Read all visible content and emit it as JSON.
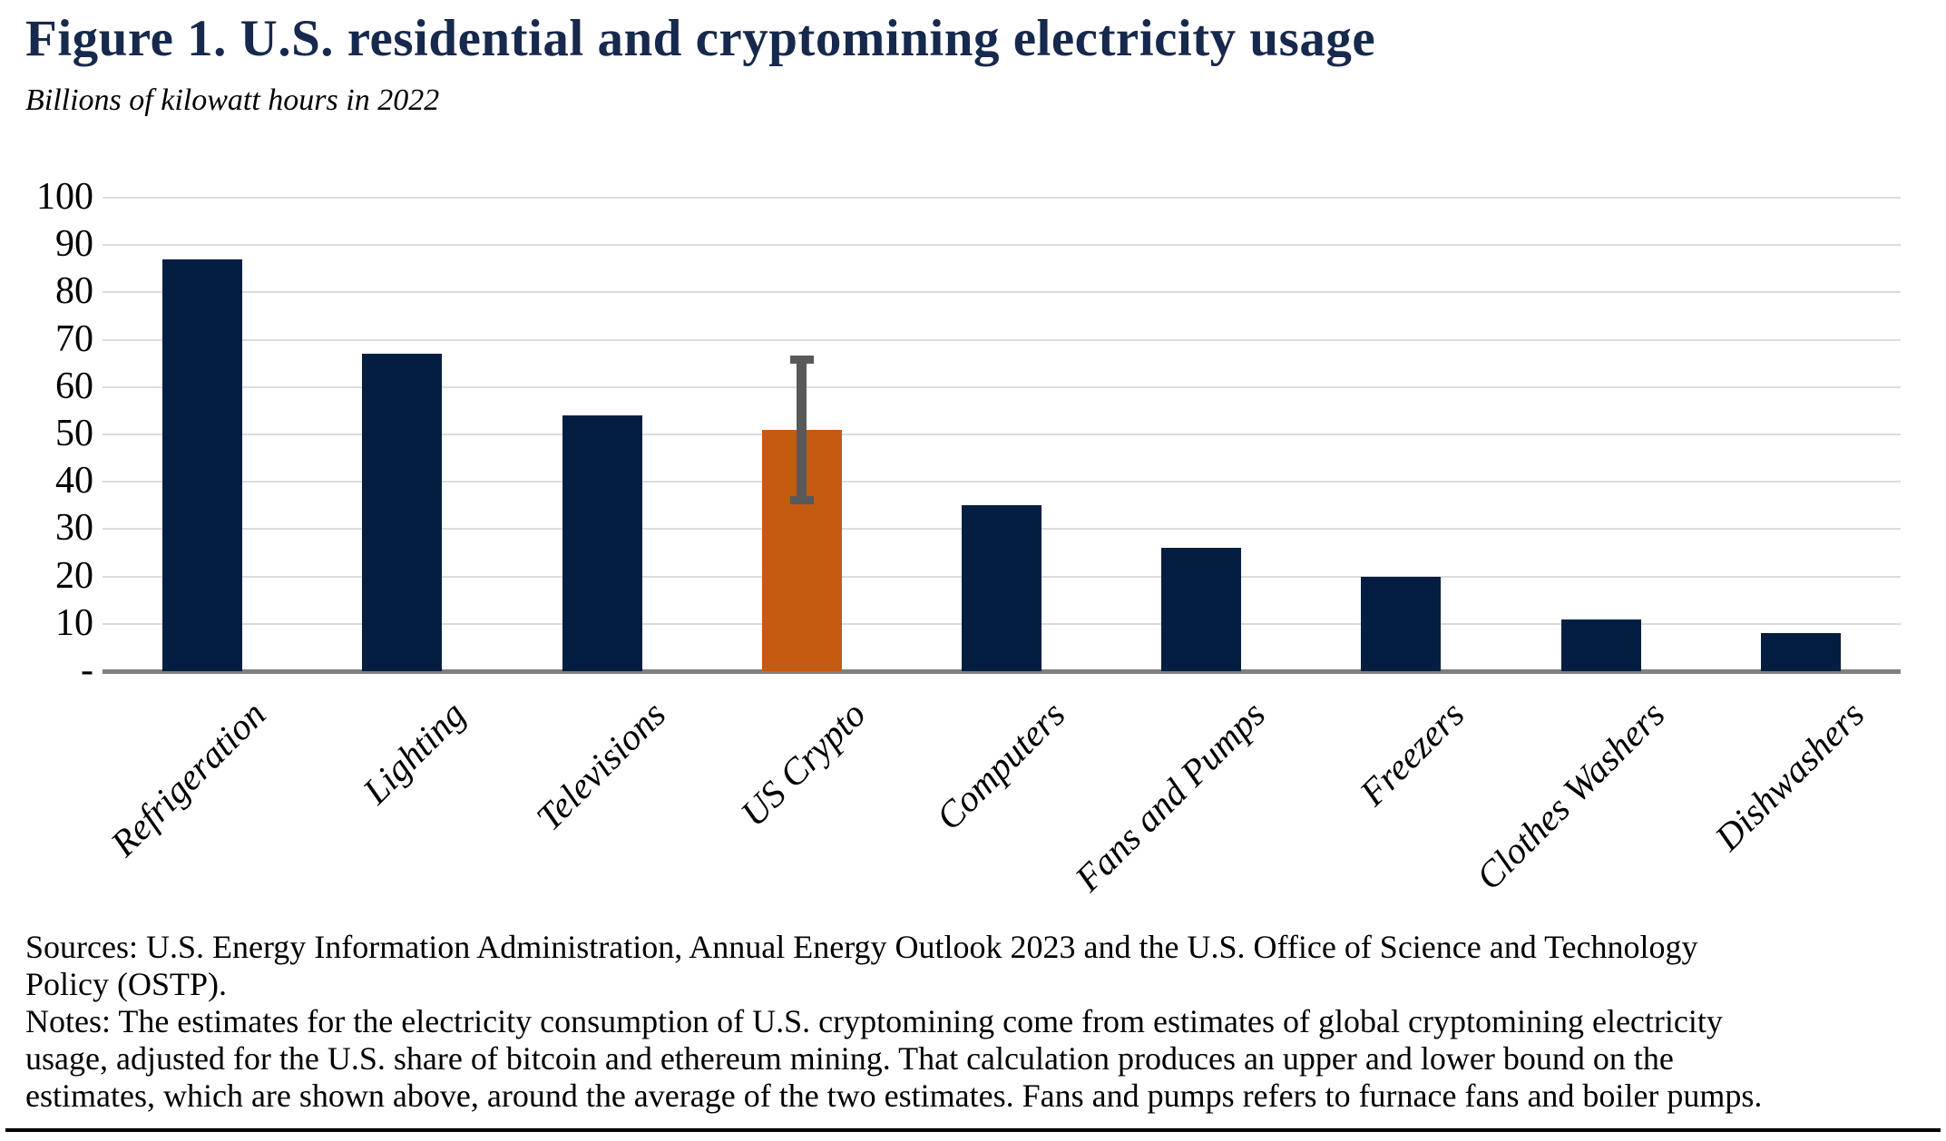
{
  "figure": {
    "title": "Figure 1. U.S. residential and cryptomining electricity usage",
    "subtitle": "Billions of kilowatt hours in 2022"
  },
  "chart_data": {
    "type": "bar",
    "title": "Figure 1. U.S. residential and cryptomining electricity usage",
    "subtitle_units": "Billions of kilowatt hours in 2022",
    "categories": [
      "Refrigeration",
      "Lighting",
      "Televisions",
      "US Crypto",
      "Computers",
      "Fans and Pumps",
      "Freezers",
      "Clothes Washers",
      "Dishwashers"
    ],
    "values": [
      87,
      67,
      54,
      51,
      35,
      26,
      20,
      11,
      8
    ],
    "highlight_category": "US Crypto",
    "error_bar": {
      "category": "US Crypto",
      "low": 36,
      "high": 66
    },
    "xlabel": "",
    "ylabel": "",
    "ylim": [
      0,
      100
    ],
    "ytick_interval": 10,
    "ytick_labels": [
      "100",
      "90",
      "80",
      "70",
      "60",
      "50",
      "40",
      "30",
      "20",
      "10",
      "-"
    ],
    "grid": "horizontal",
    "legend": "none",
    "colors": {
      "bar": "#041E42",
      "highlight": "#C55A11",
      "error_bar": "#595959",
      "gridline": "#DBDBDB",
      "baseline": "#7F7F7F",
      "title": "#17294D"
    }
  },
  "footer": {
    "sources_lines": [
      "Sources: U.S. Energy Information  Administration, Annual Energy Outlook 2023 and the U.S. Office of Science and Technology",
      "Policy (OSTP)."
    ],
    "notes_lines": [
      "Notes: The estimates for the electricity consumption of U.S. cryptomining come from estimates of global cryptomining electricity",
      "usage, adjusted for the U.S. share of bitcoin and ethereum mining. That calculation produces an upper and lower bound on the",
      "estimates, which are shown above, around the average of the two estimates. Fans and pumps refers to furnace fans and boiler pumps."
    ]
  }
}
